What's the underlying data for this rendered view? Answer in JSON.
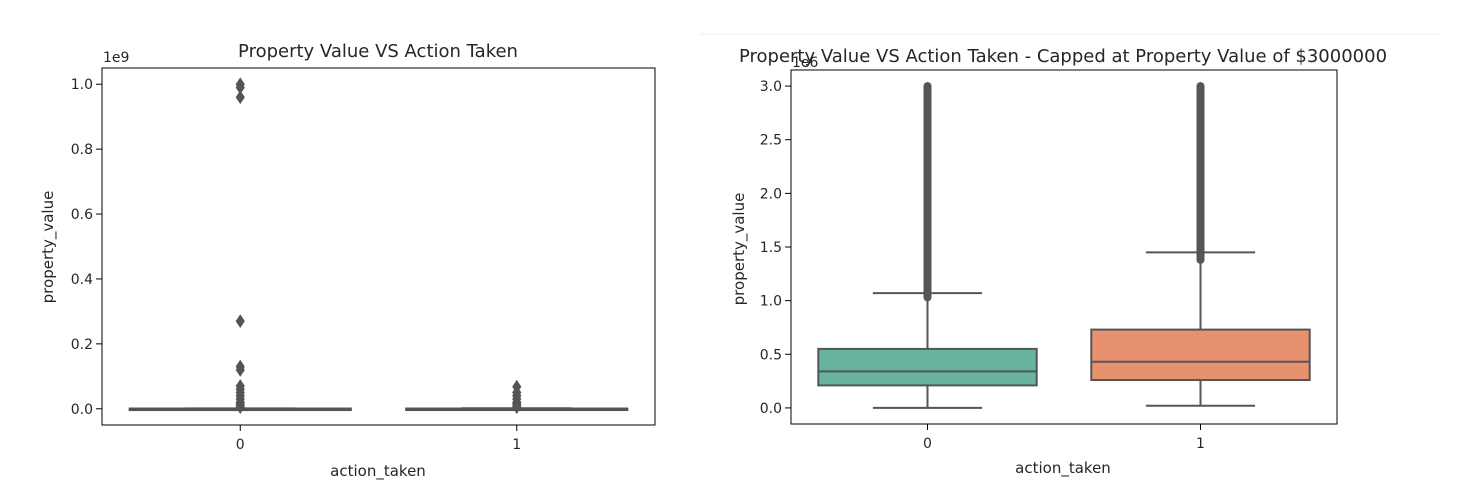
{
  "chart_data": [
    {
      "type": "box",
      "title": "Property Value VS Action Taken",
      "xlabel": "action_taken",
      "ylabel": "property_value",
      "offset_label": "1e9",
      "categories": [
        "0",
        "1"
      ],
      "ylim": [
        -0.05,
        1.05
      ],
      "yticks": [
        0.0,
        0.2,
        0.4,
        0.6,
        0.8,
        1.0
      ],
      "ytick_labels": [
        "0.0",
        "0.2",
        "0.4",
        "0.6",
        "0.8",
        "1.0"
      ],
      "box_color": "#5a5a5a",
      "boxes": [
        {
          "category": "0",
          "q1": 0.0002,
          "median": 0.0004,
          "q3": 0.0006,
          "whisker_low": 0.0,
          "whisker_high": 0.0011,
          "outliers": [
            1.0,
            0.99,
            0.96,
            0.27,
            0.13,
            0.12,
            0.07,
            0.06,
            0.05,
            0.04,
            0.03,
            0.02,
            0.015,
            0.01,
            0.005
          ]
        },
        {
          "category": "1",
          "q1": 0.0003,
          "median": 0.0004,
          "q3": 0.0007,
          "whisker_low": 0.0,
          "whisker_high": 0.0015,
          "outliers": [
            0.068,
            0.05,
            0.04,
            0.03,
            0.02,
            0.015,
            0.01,
            0.005
          ]
        }
      ]
    },
    {
      "type": "box",
      "title": "Property Value VS Action Taken - Capped at Property Value of $3000000",
      "xlabel": "action_taken",
      "ylabel": "property_value",
      "offset_label": "1e6",
      "categories": [
        "0",
        "1"
      ],
      "ylim": [
        -0.15,
        3.15
      ],
      "yticks": [
        0.0,
        0.5,
        1.0,
        1.5,
        2.0,
        2.5,
        3.0
      ],
      "ytick_labels": [
        "0.0",
        "0.5",
        "1.0",
        "1.5",
        "2.0",
        "2.5",
        "3.0"
      ],
      "boxes": [
        {
          "category": "0",
          "color": "#66b3a0",
          "q1": 0.21,
          "median": 0.34,
          "q3": 0.55,
          "whisker_low": 0.0,
          "whisker_high": 1.07,
          "outlier_range": [
            1.03,
            3.0
          ]
        },
        {
          "category": "1",
          "color": "#e8916f",
          "q1": 0.26,
          "median": 0.43,
          "q3": 0.73,
          "whisker_low": 0.02,
          "whisker_high": 1.45,
          "outlier_range": [
            1.38,
            3.0
          ]
        }
      ]
    }
  ]
}
